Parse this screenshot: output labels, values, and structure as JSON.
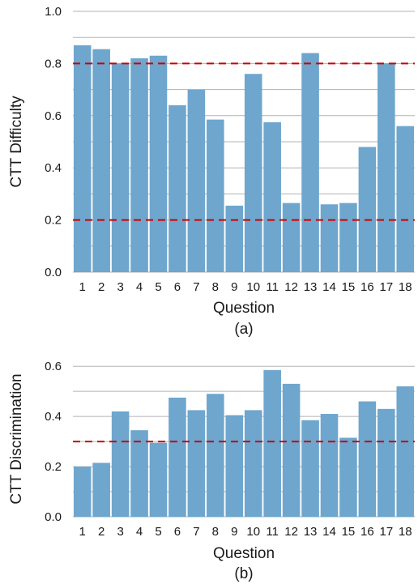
{
  "colors": {
    "bar": "#6ea6cd",
    "threshold": "#cc0000",
    "grid": "#b3b3b3"
  },
  "chart_data": [
    {
      "type": "bar",
      "caption": "(a)",
      "ylabel": "CTT Difficulty",
      "xlabel": "Question",
      "categories": [
        "1",
        "2",
        "3",
        "4",
        "5",
        "6",
        "7",
        "8",
        "9",
        "10",
        "11",
        "12",
        "13",
        "14",
        "15",
        "16",
        "17",
        "18"
      ],
      "values": [
        0.87,
        0.855,
        0.8,
        0.82,
        0.83,
        0.64,
        0.7,
        0.585,
        0.255,
        0.76,
        0.575,
        0.265,
        0.84,
        0.26,
        0.265,
        0.48,
        0.8,
        0.56
      ],
      "ylim": [
        0,
        1.0
      ],
      "yticks": [
        "0.0",
        "0.2",
        "0.4",
        "0.6",
        "0.8",
        "1.0"
      ],
      "ytick_values": [
        0,
        0.2,
        0.4,
        0.6,
        0.8,
        1.0
      ],
      "thresholds": [
        0.2,
        0.8
      ],
      "grid": true
    },
    {
      "type": "bar",
      "caption": "(b)",
      "ylabel": "CTT Discrimination",
      "xlabel": "Question",
      "categories": [
        "1",
        "2",
        "3",
        "4",
        "5",
        "6",
        "7",
        "8",
        "9",
        "10",
        "11",
        "12",
        "13",
        "14",
        "15",
        "16",
        "17",
        "18"
      ],
      "values": [
        0.2,
        0.215,
        0.42,
        0.345,
        0.295,
        0.475,
        0.425,
        0.49,
        0.405,
        0.425,
        0.585,
        0.53,
        0.385,
        0.41,
        0.315,
        0.46,
        0.43,
        0.52
      ],
      "ylim": [
        0,
        0.62
      ],
      "yticks": [
        "0.0",
        "0.2",
        "0.4",
        "0.6"
      ],
      "ytick_values": [
        0,
        0.2,
        0.4,
        0.6
      ],
      "thresholds": [
        0.3
      ],
      "grid": true
    }
  ]
}
